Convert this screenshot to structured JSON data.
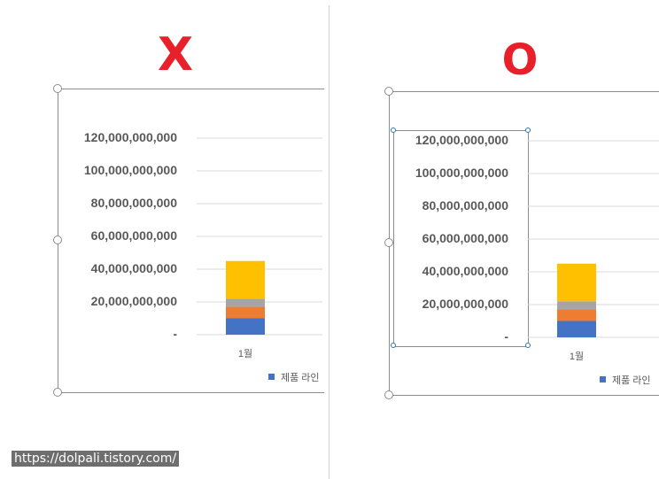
{
  "labels": {
    "wrong": "X",
    "right": "O"
  },
  "chart_data": [
    {
      "type": "bar",
      "stacked": true,
      "categories": [
        "1월"
      ],
      "series": [
        {
          "name": "제품 라인",
          "values": [
            10000000000
          ],
          "color": "#4472c4"
        },
        {
          "values": [
            7000000000
          ],
          "color": "#ed7d31"
        },
        {
          "values": [
            5000000000
          ],
          "color": "#a5a5a5"
        },
        {
          "values": [
            23000000000
          ],
          "color": "#ffc000"
        }
      ],
      "yticks": [
        "-",
        "20,000,000,000",
        "40,000,000,000",
        "60,000,000,000",
        "80,000,000,000",
        "100,000,000,000",
        "120,000,000,000"
      ],
      "ylim": [
        0,
        120000000000
      ],
      "grid": true,
      "legend": "bottom",
      "axis_selected": false
    },
    {
      "type": "bar",
      "stacked": true,
      "categories": [
        "1월"
      ],
      "series": [
        {
          "name": "제품 라인",
          "values": [
            10000000000
          ],
          "color": "#4472c4"
        },
        {
          "values": [
            7000000000
          ],
          "color": "#ed7d31"
        },
        {
          "values": [
            5000000000
          ],
          "color": "#a5a5a5"
        },
        {
          "values": [
            23000000000
          ],
          "color": "#ffc000"
        }
      ],
      "yticks": [
        "-",
        "20,000,000,000",
        "40,000,000,000",
        "60,000,000,000",
        "80,000,000,000",
        "100,000,000,000",
        "120,000,000,000"
      ],
      "ylim": [
        0,
        120000000000
      ],
      "grid": true,
      "legend": "bottom",
      "axis_selected": true
    }
  ],
  "watermark": "https://dolpali.tistory.com/"
}
